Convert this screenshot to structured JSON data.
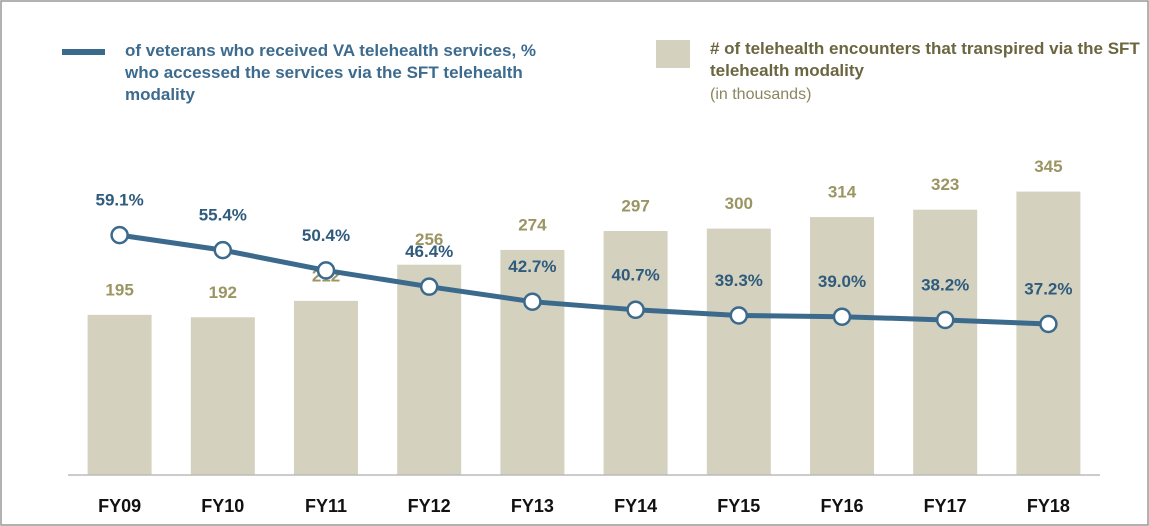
{
  "chart_data": {
    "type": "bar",
    "categories": [
      "FY09",
      "FY10",
      "FY11",
      "FY12",
      "FY13",
      "FY14",
      "FY15",
      "FY16",
      "FY17",
      "FY18"
    ],
    "series": [
      {
        "name": "# of telehealth encounters that transpired via the SFT telehealth modality",
        "subtitle": "(in thousands)",
        "type": "bar",
        "color": "#d4d1bf",
        "values": [
          195,
          192,
          212,
          256,
          274,
          297,
          300,
          314,
          323,
          345
        ]
      },
      {
        "name": "of veterans who received VA telehealth services, % who accessed the services via the SFT telehealth modality",
        "type": "line",
        "axis": "y2",
        "color": "#3b6a8d",
        "values": [
          59.1,
          55.4,
          50.4,
          46.4,
          42.7,
          40.7,
          39.3,
          39.0,
          38.2,
          37.2
        ],
        "value_labels": [
          "59.1%",
          "55.4%",
          "50.4%",
          "46.4%",
          "42.7%",
          "40.7%",
          "39.3%",
          "39.0%",
          "38.2%",
          "37.2%"
        ]
      }
    ],
    "ylim": [
      0,
      420
    ],
    "y2lim": [
      0,
      85
    ]
  }
}
